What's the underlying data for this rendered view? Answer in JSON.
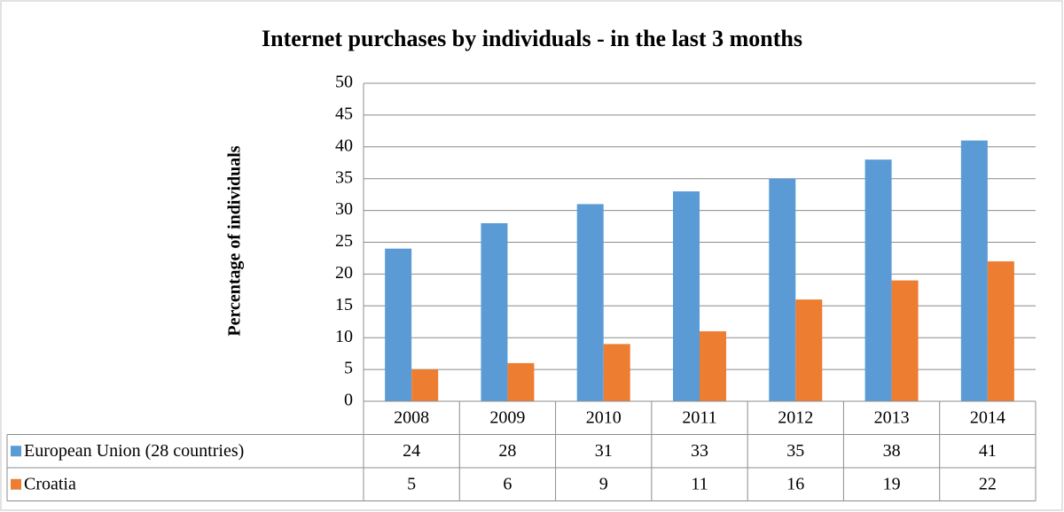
{
  "chart_data": {
    "type": "bar",
    "title": "Internet purchases by individuals - in the last 3 months",
    "y_label": "Percentage of individuals",
    "categories": [
      "2008",
      "2009",
      "2010",
      "2011",
      "2012",
      "2013",
      "2014"
    ],
    "series": [
      {
        "name": "European Union (28 countries)",
        "color": "#5b9bd5",
        "values": [
          24,
          28,
          31,
          33,
          35,
          38,
          41
        ]
      },
      {
        "name": "Croatia",
        "color": "#ed7d31",
        "values": [
          5,
          6,
          9,
          11,
          16,
          19,
          22
        ]
      }
    ],
    "ylim": [
      0,
      50
    ],
    "yticks": [
      0,
      5,
      10,
      15,
      20,
      25,
      30,
      35,
      40,
      45,
      50
    ],
    "grid": true,
    "data_table": true
  }
}
